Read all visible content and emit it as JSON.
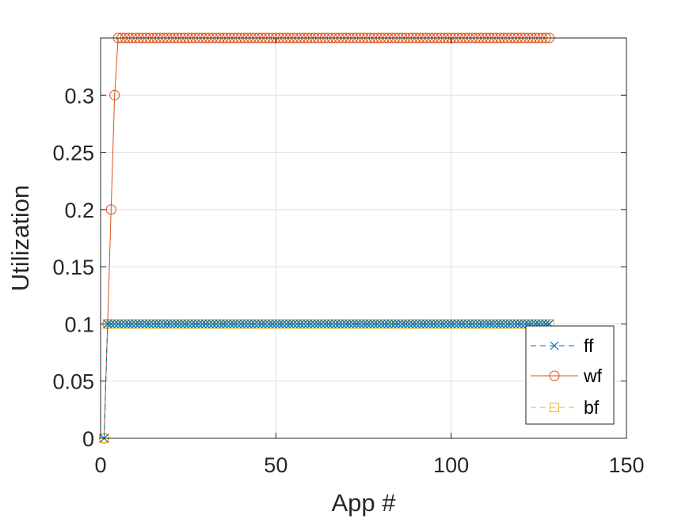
{
  "chart_data": {
    "type": "line",
    "title": "",
    "xlabel": "App #",
    "ylabel": "Utilization",
    "xlim": [
      0,
      150
    ],
    "ylim": [
      0,
      0.35
    ],
    "xticks": [
      0,
      50,
      100,
      150
    ],
    "xtick_labels": [
      "0",
      "50",
      "100",
      "150"
    ],
    "yticks": [
      0,
      0.05,
      0.1,
      0.15,
      0.2,
      0.25,
      0.3
    ],
    "ytick_labels": [
      "0",
      "0.05",
      "0.1",
      "0.15",
      "0.2",
      "0.25",
      "0.3"
    ],
    "grid": true,
    "legend_position": "bottom-right",
    "series": [
      {
        "name": "ff",
        "color": "#0072BD",
        "line_style": "dashed",
        "marker": "x",
        "x_range": [
          1,
          128
        ],
        "values_by_x": {
          "1": 0,
          "2": 0.1
        },
        "steady_value": 0.1
      },
      {
        "name": "wf",
        "color": "#D95319",
        "line_style": "solid",
        "marker": "circle",
        "x_range": [
          1,
          128
        ],
        "values_by_x": {
          "1": 0,
          "2": 0.1,
          "3": 0.2,
          "4": 0.3,
          "5": 0.35
        },
        "steady_value": 0.35
      },
      {
        "name": "bf",
        "color": "#EDB120",
        "line_style": "dashed",
        "marker": "square",
        "x_range": [
          1,
          128
        ],
        "values_by_x": {
          "1": 0,
          "2": 0.1
        },
        "steady_value": 0.1
      }
    ]
  }
}
